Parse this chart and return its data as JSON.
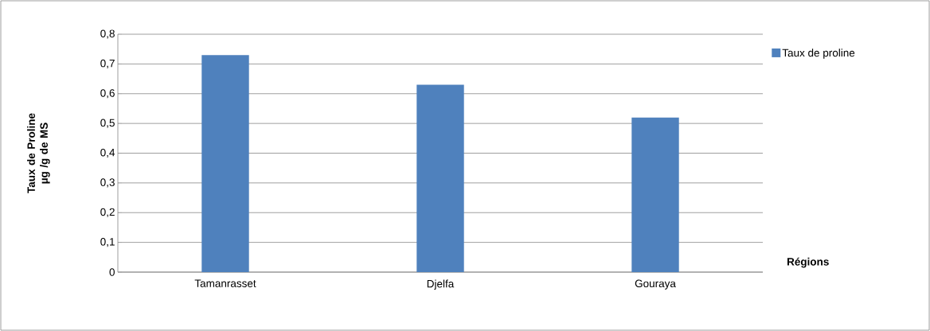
{
  "chart_data": {
    "type": "bar",
    "categories": [
      "Tamanrasset",
      "Djelfa",
      "Gouraya"
    ],
    "series": [
      {
        "name": "Taux de proline",
        "color": "#4f81bd",
        "values": [
          0.73,
          0.63,
          0.52
        ]
      }
    ],
    "xlabel": "Régions",
    "ylabel": "Taux de Proline µg /g de MS",
    "ylim": [
      0,
      0.8
    ],
    "yticks": [
      0,
      {
        "value": 0.1,
        "label": "0,1"
      },
      {
        "value": 0.2,
        "label": "0,2"
      },
      {
        "value": 0.3,
        "label": "0,3"
      },
      {
        "value": 0.4,
        "label": "0,4"
      },
      {
        "value": 0.5,
        "label": "0,5"
      },
      {
        "value": 0.6,
        "label": "0,6"
      },
      {
        "value": 0.7,
        "label": "0,7"
      },
      {
        "value": 0.8,
        "label": "0,8"
      }
    ],
    "grid": "y",
    "legend": "top right"
  }
}
